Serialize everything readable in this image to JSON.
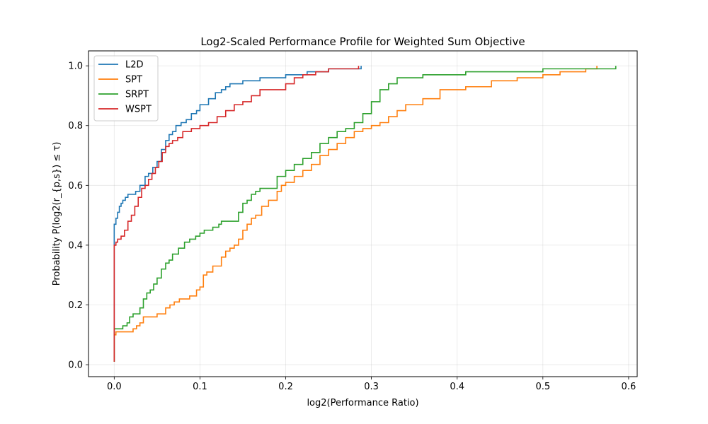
{
  "chart_data": {
    "type": "line",
    "step": "post",
    "title": "Log2-Scaled Performance Profile for Weighted Sum Objective",
    "xlabel": "log2(Performance Ratio)",
    "ylabel": "Probability P(log2(r_{p,s}) ≤ τ)",
    "xlim": [
      -0.03,
      0.61
    ],
    "ylim": [
      -0.04,
      1.05
    ],
    "xticks": [
      0.0,
      0.1,
      0.2,
      0.3,
      0.4,
      0.5,
      0.6
    ],
    "xtick_labels": [
      "0.0",
      "0.1",
      "0.2",
      "0.3",
      "0.4",
      "0.5",
      "0.6"
    ],
    "yticks": [
      0.0,
      0.2,
      0.4,
      0.6,
      0.8,
      1.0
    ],
    "ytick_labels": [
      "0.0",
      "0.2",
      "0.4",
      "0.6",
      "0.8",
      "1.0"
    ],
    "grid": true,
    "legend_position": "top-left",
    "series": [
      {
        "name": "L2D",
        "color": "#1f77b4",
        "x": [
          0,
          0,
          0.002,
          0.004,
          0.006,
          0.008,
          0.01,
          0.013,
          0.016,
          0.02,
          0.025,
          0.03,
          0.036,
          0.04,
          0.045,
          0.05,
          0.055,
          0.06,
          0.064,
          0.068,
          0.072,
          0.078,
          0.084,
          0.09,
          0.096,
          0.1,
          0.105,
          0.11,
          0.118,
          0.125,
          0.13,
          0.135,
          0.15,
          0.17,
          0.2,
          0.225,
          0.25,
          0.288
        ],
        "y": [
          0.01,
          0.47,
          0.49,
          0.51,
          0.53,
          0.54,
          0.55,
          0.56,
          0.57,
          0.57,
          0.58,
          0.6,
          0.63,
          0.64,
          0.66,
          0.68,
          0.72,
          0.75,
          0.77,
          0.78,
          0.8,
          0.81,
          0.82,
          0.84,
          0.85,
          0.87,
          0.87,
          0.89,
          0.91,
          0.92,
          0.93,
          0.94,
          0.95,
          0.96,
          0.97,
          0.98,
          0.99,
          1.0
        ]
      },
      {
        "name": "SPT",
        "color": "#ff7f0e",
        "x": [
          0,
          0,
          0.002,
          0.022,
          0.026,
          0.03,
          0.034,
          0.05,
          0.06,
          0.065,
          0.07,
          0.076,
          0.082,
          0.088,
          0.096,
          0.1,
          0.104,
          0.108,
          0.115,
          0.125,
          0.13,
          0.135,
          0.14,
          0.145,
          0.15,
          0.155,
          0.16,
          0.165,
          0.172,
          0.18,
          0.19,
          0.195,
          0.2,
          0.21,
          0.22,
          0.23,
          0.24,
          0.25,
          0.26,
          0.27,
          0.28,
          0.29,
          0.3,
          0.31,
          0.32,
          0.33,
          0.34,
          0.36,
          0.38,
          0.41,
          0.44,
          0.47,
          0.5,
          0.52,
          0.55,
          0.563
        ],
        "y": [
          0.01,
          0.1,
          0.11,
          0.12,
          0.13,
          0.14,
          0.16,
          0.17,
          0.19,
          0.2,
          0.21,
          0.22,
          0.22,
          0.23,
          0.25,
          0.26,
          0.3,
          0.31,
          0.33,
          0.36,
          0.38,
          0.39,
          0.4,
          0.42,
          0.45,
          0.47,
          0.49,
          0.5,
          0.53,
          0.55,
          0.58,
          0.6,
          0.61,
          0.63,
          0.65,
          0.67,
          0.7,
          0.72,
          0.74,
          0.76,
          0.78,
          0.79,
          0.8,
          0.81,
          0.83,
          0.85,
          0.87,
          0.89,
          0.92,
          0.93,
          0.95,
          0.96,
          0.97,
          0.98,
          0.99,
          1.0
        ]
      },
      {
        "name": "SRPT",
        "color": "#2ca02c",
        "x": [
          0,
          0,
          0.01,
          0.015,
          0.018,
          0.022,
          0.03,
          0.034,
          0.038,
          0.042,
          0.046,
          0.05,
          0.055,
          0.06,
          0.064,
          0.068,
          0.075,
          0.082,
          0.088,
          0.095,
          0.1,
          0.105,
          0.115,
          0.122,
          0.125,
          0.13,
          0.145,
          0.15,
          0.155,
          0.16,
          0.165,
          0.17,
          0.19,
          0.2,
          0.21,
          0.22,
          0.23,
          0.24,
          0.25,
          0.26,
          0.27,
          0.28,
          0.29,
          0.3,
          0.31,
          0.32,
          0.33,
          0.34,
          0.36,
          0.41,
          0.5,
          0.55,
          0.585
        ],
        "y": [
          0.01,
          0.12,
          0.13,
          0.14,
          0.16,
          0.17,
          0.19,
          0.22,
          0.24,
          0.25,
          0.27,
          0.29,
          0.32,
          0.34,
          0.35,
          0.37,
          0.39,
          0.41,
          0.42,
          0.43,
          0.44,
          0.45,
          0.46,
          0.47,
          0.48,
          0.48,
          0.51,
          0.54,
          0.55,
          0.57,
          0.58,
          0.59,
          0.63,
          0.65,
          0.67,
          0.69,
          0.71,
          0.74,
          0.76,
          0.78,
          0.79,
          0.81,
          0.84,
          0.88,
          0.92,
          0.94,
          0.96,
          0.96,
          0.97,
          0.98,
          0.99,
          0.99,
          1.0
        ]
      },
      {
        "name": "WSPT",
        "color": "#d62728",
        "x": [
          0,
          0,
          0.002,
          0.004,
          0.008,
          0.012,
          0.016,
          0.02,
          0.024,
          0.028,
          0.032,
          0.036,
          0.04,
          0.044,
          0.048,
          0.052,
          0.056,
          0.06,
          0.064,
          0.068,
          0.074,
          0.08,
          0.09,
          0.1,
          0.11,
          0.12,
          0.13,
          0.14,
          0.15,
          0.16,
          0.17,
          0.2,
          0.21,
          0.22,
          0.235,
          0.25,
          0.285
        ],
        "y": [
          0.01,
          0.4,
          0.41,
          0.42,
          0.43,
          0.45,
          0.48,
          0.5,
          0.53,
          0.56,
          0.59,
          0.6,
          0.62,
          0.64,
          0.66,
          0.68,
          0.71,
          0.73,
          0.74,
          0.75,
          0.76,
          0.78,
          0.79,
          0.8,
          0.81,
          0.83,
          0.85,
          0.87,
          0.88,
          0.9,
          0.92,
          0.94,
          0.96,
          0.97,
          0.98,
          0.99,
          1.0
        ]
      }
    ]
  }
}
